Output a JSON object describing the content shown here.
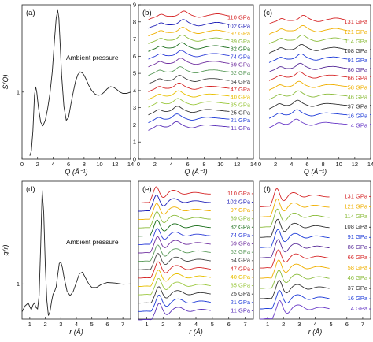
{
  "figure": {
    "panels": [
      "(a)",
      "(b)",
      "(c)",
      "(d)",
      "(e)",
      "(f)"
    ],
    "annotation_top": "Ambient pressure",
    "annotation_bottom": "Ambient pressure"
  },
  "chart_data": [
    {
      "id": "a",
      "type": "line",
      "panel_label": "(a)",
      "xlabel": "Q (Å⁻¹)",
      "ylabel": "S(Q)",
      "xlim": [
        0,
        14
      ],
      "ylim": [
        0,
        2.3
      ],
      "xticks": [
        0,
        2,
        4,
        6,
        8,
        10,
        12,
        14
      ],
      "yticks": [
        1
      ],
      "annotation": "Ambient pressure",
      "series": [
        {
          "color": "#222222",
          "x": [
            1.0,
            1.2,
            1.4,
            1.6,
            1.75,
            1.9,
            2.1,
            2.4,
            2.7,
            3.0,
            3.3,
            3.6,
            3.9,
            4.2,
            4.4,
            4.6,
            4.75,
            4.9,
            5.1,
            5.4,
            5.7,
            6.0,
            6.3,
            6.6,
            6.9,
            7.2,
            7.5,
            7.8,
            8.0,
            8.3,
            8.6,
            9.0,
            9.4,
            9.8,
            10.2,
            10.6,
            11.0,
            11.4,
            11.8,
            12.2,
            12.6,
            13.0,
            13.5,
            14.0
          ],
          "y": [
            0.05,
            0.12,
            0.42,
            0.95,
            1.08,
            1.0,
            0.78,
            0.55,
            0.5,
            0.58,
            0.75,
            0.98,
            1.3,
            1.8,
            2.1,
            2.22,
            2.1,
            1.75,
            1.25,
            0.78,
            0.58,
            0.62,
            0.82,
            1.0,
            1.16,
            1.26,
            1.3,
            1.28,
            1.25,
            1.18,
            1.1,
            1.02,
            0.97,
            0.95,
            0.96,
            1.0,
            1.05,
            1.08,
            1.07,
            1.04,
            1.0,
            0.98,
            0.98,
            1.0
          ]
        }
      ]
    },
    {
      "id": "b",
      "type": "line",
      "panel_label": "(b)",
      "xlabel": "Q (Å⁻¹)",
      "ylabel": "",
      "xlim": [
        0,
        14
      ],
      "ylim": [
        0,
        9
      ],
      "xticks": [
        0,
        2,
        4,
        6,
        8,
        10,
        12,
        14
      ],
      "yticks": [
        0,
        1,
        2,
        3,
        4,
        5,
        6,
        7,
        8,
        9
      ],
      "labels": [
        "110 GPa",
        "102 GPa",
        "97 GPa",
        "89 GPa",
        "82 GPa",
        "74 GPa",
        "69 GPa",
        "62 GPa",
        "54 GPa",
        "47 GPa",
        "40 GPa",
        "35 GPa",
        "25 GPa",
        "21 GPa",
        "11 GPa"
      ],
      "colors": [
        "#d62728",
        "#1f1fb8",
        "#f0b000",
        "#8cbc3c",
        "#1a6e1a",
        "#2c3cd8",
        "#7030a0",
        "#5a9a5a",
        "#444444",
        "#d62728",
        "#e8c000",
        "#9cc840",
        "#333333",
        "#1f3cd8",
        "#5a30b8"
      ],
      "offsets": [
        7.85,
        7.35,
        6.9,
        6.45,
        6.0,
        5.55,
        5.1,
        4.6,
        4.1,
        3.65,
        3.2,
        2.75,
        2.3,
        1.85,
        1.4
      ]
    },
    {
      "id": "c",
      "type": "line",
      "panel_label": "(c)",
      "xlabel": "Q (Å⁻¹)",
      "ylabel": "",
      "xlim": [
        0,
        14
      ],
      "ylim": [
        0,
        9
      ],
      "xticks": [
        0,
        2,
        4,
        6,
        8,
        10,
        12,
        14
      ],
      "labels": [
        "131 GPa",
        "121 GPa",
        "114 GPa",
        "108 GPa",
        "91 GPa",
        "86 GPa",
        "66 GPa",
        "58 GPa",
        "46 GPa",
        "37 GPa",
        "16 GPa",
        "4 GPa"
      ],
      "colors": [
        "#d62728",
        "#f0b000",
        "#8cbc3c",
        "#333333",
        "#1f3cd8",
        "#5a2f9a",
        "#d62728",
        "#f0b000",
        "#8cbc3c",
        "#333333",
        "#1f3cd8",
        "#6a3cc8"
      ],
      "offsets": [
        7.6,
        7.0,
        6.45,
        5.9,
        5.35,
        4.8,
        4.3,
        3.75,
        3.2,
        2.65,
        2.1,
        1.55
      ]
    },
    {
      "id": "d",
      "type": "line",
      "panel_label": "(d)",
      "xlabel": "r (Å)",
      "ylabel": "g(r)",
      "xlim": [
        0.5,
        7.5
      ],
      "ylim": [
        -0.2,
        4.5
      ],
      "xticks": [
        1,
        2,
        3,
        4,
        5,
        6,
        7
      ],
      "yticks": [
        1
      ],
      "annotation": "Ambient pressure",
      "series": [
        {
          "color": "#222222",
          "x": [
            0.5,
            0.7,
            0.9,
            1.0,
            1.1,
            1.2,
            1.3,
            1.4,
            1.5,
            1.6,
            1.7,
            1.8,
            1.9,
            2.0,
            2.1,
            2.2,
            2.3,
            2.4,
            2.5,
            2.6,
            2.7,
            2.8,
            2.9,
            3.0,
            3.1,
            3.2,
            3.4,
            3.6,
            3.8,
            4.0,
            4.2,
            4.4,
            4.6,
            4.8,
            5.0,
            5.3,
            5.6,
            6.0,
            6.5,
            7.0,
            7.5
          ],
          "y": [
            0.05,
            0.25,
            0.35,
            0.22,
            0.12,
            0.28,
            0.35,
            0.2,
            0.15,
            0.6,
            2.3,
            4.2,
            3.4,
            1.6,
            0.45,
            -0.08,
            0.05,
            0.4,
            0.65,
            0.75,
            0.9,
            1.3,
            1.7,
            1.75,
            1.55,
            1.25,
            0.75,
            0.6,
            0.75,
            1.05,
            1.35,
            1.4,
            1.2,
            1.0,
            0.88,
            0.88,
            0.98,
            1.05,
            1.03,
            0.99,
            1.0
          ]
        }
      ]
    },
    {
      "id": "e",
      "type": "line",
      "panel_label": "(e)",
      "xlabel": "r (Å)",
      "ylabel": "",
      "xlim": [
        0.5,
        7.5
      ],
      "ylim": [
        0,
        16.5
      ],
      "xticks": [
        1,
        2,
        3,
        4,
        5,
        6,
        7
      ],
      "labels": [
        "110 GPa",
        "102 GPa",
        "97 GPa",
        "89 GPa",
        "82 GPa",
        "74 GPa",
        "69 GPa",
        "62 GPa",
        "54 GPa",
        "47 GPa",
        "40 GPa",
        "35 GPa",
        "25 GPa",
        "21 GPa",
        "11 GPa"
      ],
      "colors": [
        "#d62728",
        "#1f1fb8",
        "#f0b000",
        "#8cbc3c",
        "#1a6e1a",
        "#2c3cd8",
        "#7030a0",
        "#5a9a5a",
        "#444444",
        "#d62728",
        "#e8c000",
        "#9cc840",
        "#333333",
        "#1f3cd8",
        "#5a30b8"
      ],
      "offsets": [
        15.0,
        14.0,
        13.0,
        12.0,
        11.0,
        10.0,
        9.0,
        8.0,
        7.0,
        6.0,
        5.0,
        4.0,
        3.0,
        2.0,
        1.0
      ]
    },
    {
      "id": "f",
      "type": "line",
      "panel_label": "(f)",
      "xlabel": "r (Å)",
      "ylabel": "",
      "xlim": [
        0.5,
        7.5
      ],
      "ylim": [
        0,
        13.5
      ],
      "xticks": [
        1,
        2,
        3,
        4,
        5,
        6,
        7
      ],
      "labels": [
        "131 GPa",
        "121 GPa",
        "114 GPa",
        "108 GPa",
        "91 GPa",
        "86 GPa",
        "66 GPa",
        "58 GPa",
        "46 GPa",
        "37 GPa",
        "16 GPa",
        "4 GPa"
      ],
      "colors": [
        "#d62728",
        "#f0b000",
        "#8cbc3c",
        "#333333",
        "#1f3cd8",
        "#5a2f9a",
        "#d62728",
        "#f0b000",
        "#8cbc3c",
        "#333333",
        "#1f3cd8",
        "#6a3cc8"
      ],
      "offsets": [
        12.0,
        11.0,
        10.0,
        9.0,
        8.0,
        7.0,
        6.0,
        5.0,
        4.0,
        3.0,
        2.0,
        1.0
      ]
    }
  ]
}
